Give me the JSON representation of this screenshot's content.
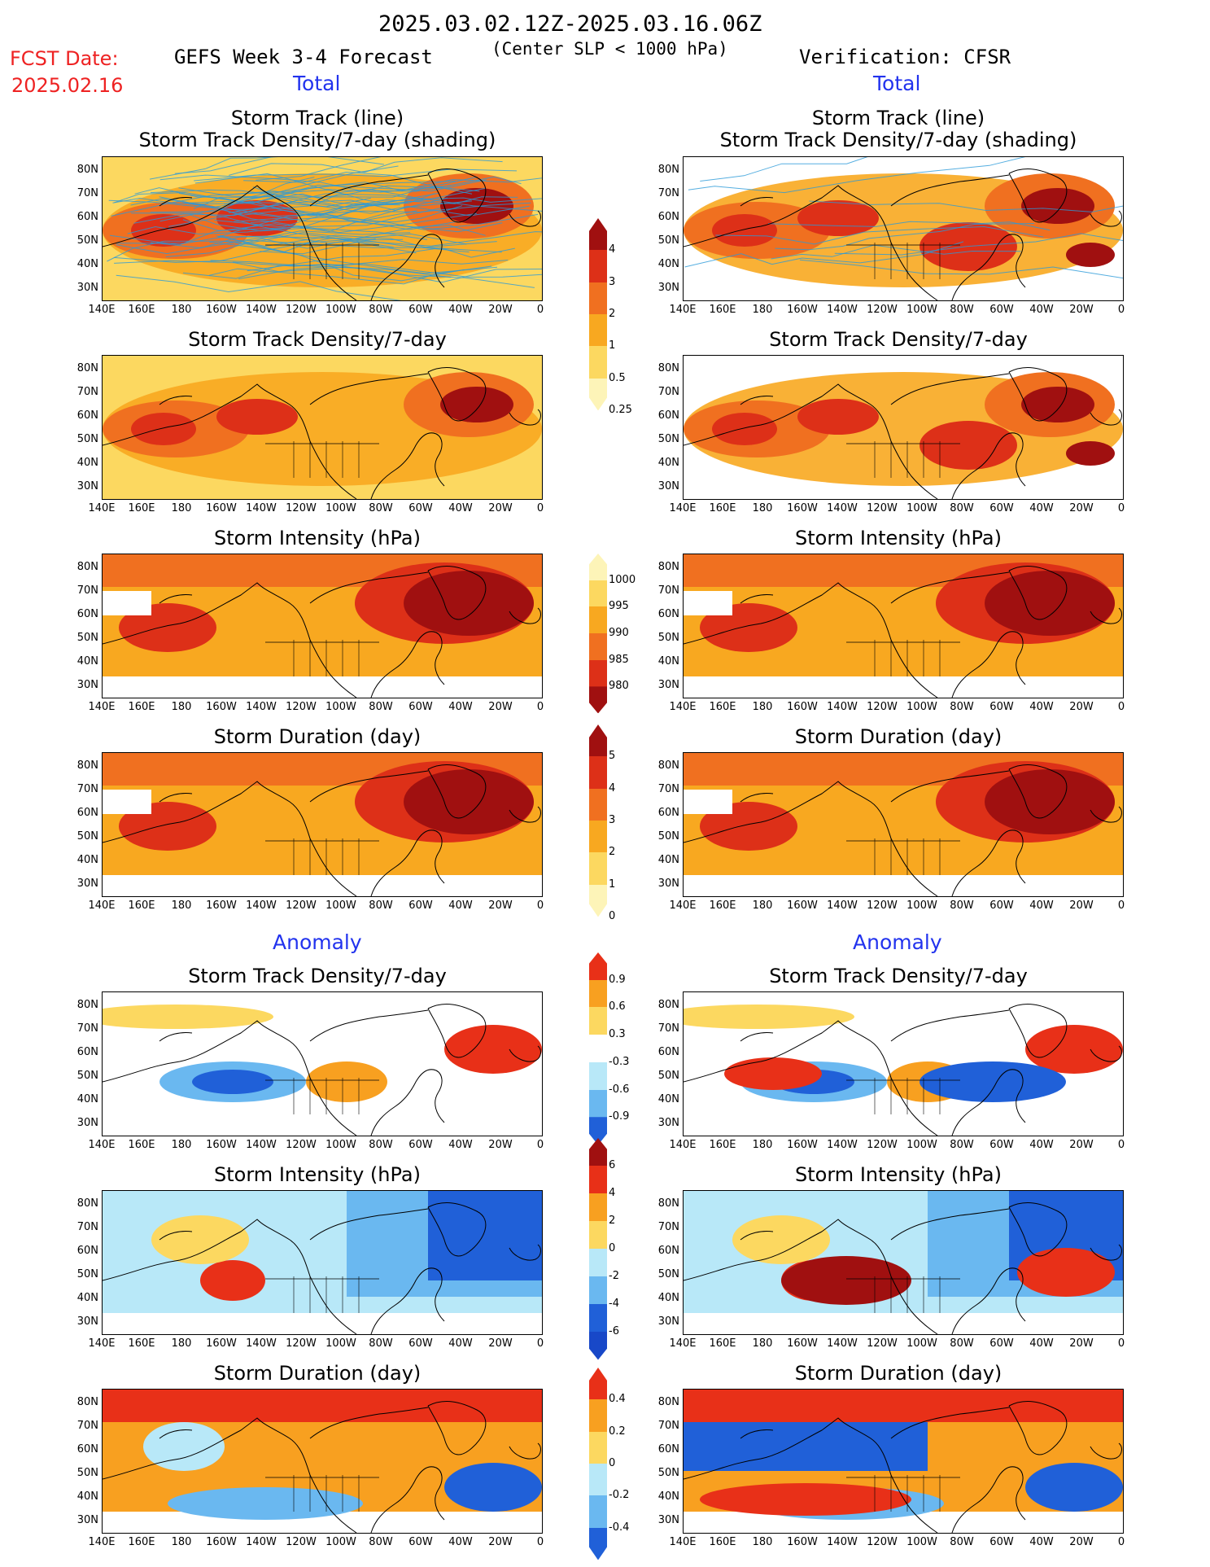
{
  "header": {
    "date_range": "2025.03.02.12Z-2025.03.16.06Z",
    "subtitle": "(Center SLP < 1000 hPa)",
    "fcst_label": "FCST Date:",
    "fcst_date": "2025.02.16",
    "left_title": "GEFS Week 3-4 Forecast",
    "right_title": "Verification: CFSR"
  },
  "sections": {
    "total": "Total",
    "anomaly": "Anomaly"
  },
  "panels": {
    "track_line_1": "Storm Track (line)",
    "track_line_2": "Storm Track Density/7-day (shading)",
    "density": "Storm Track Density/7-day",
    "intensity": "Storm Intensity (hPa)",
    "duration": "Storm Duration (day)"
  },
  "axes": {
    "x_ticks": [
      "140E",
      "160E",
      "180",
      "160W",
      "140W",
      "120W",
      "100W",
      "80W",
      "60W",
      "40W",
      "20W",
      "0"
    ],
    "y_ticks": [
      "80N",
      "70N",
      "60N",
      "50N",
      "40N",
      "30N"
    ]
  },
  "colorbars": {
    "density_total": {
      "labels": [
        "4",
        "3",
        "2",
        "1",
        "0.5",
        "0.25"
      ],
      "colors": [
        "#a01010",
        "#dd3018",
        "#f07020",
        "#f8a820",
        "#fcd860",
        "#fdf4b8"
      ]
    },
    "intensity_total": {
      "labels": [
        "1000",
        "995",
        "990",
        "985",
        "980"
      ],
      "colors": [
        "#fdf4b8",
        "#fcd860",
        "#f8a820",
        "#f07020",
        "#dd3018",
        "#a01010"
      ]
    },
    "duration_total": {
      "labels": [
        "5",
        "4",
        "3",
        "2",
        "1",
        "0"
      ],
      "colors": [
        "#a01010",
        "#dd3018",
        "#f07020",
        "#f8a820",
        "#fcd860",
        "#fdf4b8"
      ]
    },
    "density_anom": {
      "labels": [
        "0.9",
        "0.6",
        "0.3",
        "-0.3",
        "-0.6",
        "-0.9"
      ],
      "colors": [
        "#e83018",
        "#f8a020",
        "#fcd860",
        "#ffffff",
        "#b8e8f8",
        "#6ab8f0",
        "#2060d8"
      ]
    },
    "intensity_anom": {
      "labels": [
        "6",
        "4",
        "2",
        "0",
        "-2",
        "-4",
        "-6"
      ],
      "colors": [
        "#a01010",
        "#e83018",
        "#f8a020",
        "#fcd860",
        "#b8e8f8",
        "#6ab8f0",
        "#2060d8",
        "#1848c8"
      ]
    },
    "duration_anom": {
      "labels": [
        "0.4",
        "0.2",
        "0",
        "-0.2",
        "-0.4"
      ],
      "colors": [
        "#e83018",
        "#f8a020",
        "#fcd860",
        "#b8e8f8",
        "#6ab8f0",
        "#2060d8"
      ]
    }
  }
}
